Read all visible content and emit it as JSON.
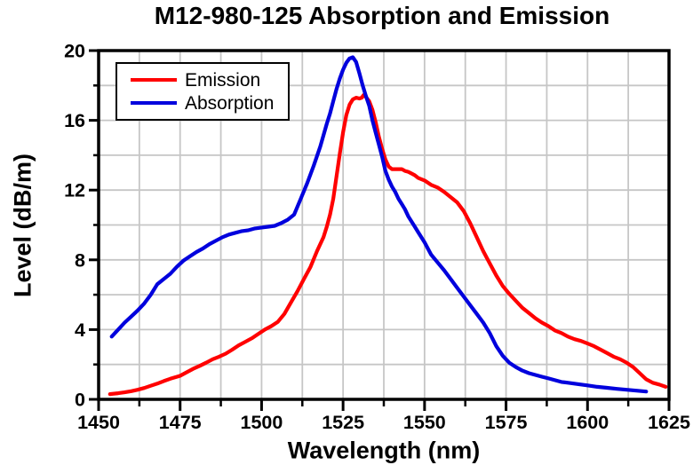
{
  "title": "M12-980-125 Absorption and Emission",
  "colors": {
    "emission": "#ff0000",
    "absorption": "#0000dd",
    "grid": "#c6c6c6",
    "frame": "#000000",
    "background": "#ffffff",
    "text": "#000000"
  },
  "legend": {
    "position": "top-left",
    "items": [
      {
        "label": "Emission",
        "color": "#ff0000"
      },
      {
        "label": "Absorption",
        "color": "#0000dd"
      }
    ]
  },
  "chart_data": {
    "type": "line",
    "title": "M12-980-125 Absorption and Emission",
    "xlabel": "Wavelength (nm)",
    "ylabel": "Level (dB/m)",
    "xlim": [
      1450,
      1625
    ],
    "ylim": [
      0,
      20
    ],
    "x_major_ticks": [
      1450,
      1475,
      1500,
      1525,
      1550,
      1575,
      1600,
      1625
    ],
    "x_minor_step": 12.5,
    "y_major_ticks": [
      0,
      4,
      8,
      12,
      16,
      20
    ],
    "y_minor_step": 2,
    "grid": true,
    "legend_position": "top-left",
    "series": [
      {
        "name": "Emission",
        "color": "#ff0000",
        "points": [
          [
            1453.5,
            0.3
          ],
          [
            1456,
            0.35
          ],
          [
            1458,
            0.4
          ],
          [
            1460,
            0.47
          ],
          [
            1462,
            0.55
          ],
          [
            1464,
            0.65
          ],
          [
            1466,
            0.78
          ],
          [
            1468,
            0.9
          ],
          [
            1470,
            1.05
          ],
          [
            1472,
            1.18
          ],
          [
            1475,
            1.35
          ],
          [
            1477,
            1.55
          ],
          [
            1479,
            1.75
          ],
          [
            1481,
            1.92
          ],
          [
            1483,
            2.1
          ],
          [
            1485,
            2.3
          ],
          [
            1487,
            2.45
          ],
          [
            1489,
            2.62
          ],
          [
            1491,
            2.85
          ],
          [
            1493,
            3.1
          ],
          [
            1495,
            3.3
          ],
          [
            1497,
            3.5
          ],
          [
            1499,
            3.75
          ],
          [
            1501,
            4.0
          ],
          [
            1503,
            4.2
          ],
          [
            1505,
            4.45
          ],
          [
            1507,
            4.9
          ],
          [
            1509,
            5.55
          ],
          [
            1511,
            6.2
          ],
          [
            1513,
            6.9
          ],
          [
            1515,
            7.6
          ],
          [
            1517,
            8.5
          ],
          [
            1519,
            9.3
          ],
          [
            1520,
            9.9
          ],
          [
            1521,
            10.6
          ],
          [
            1522,
            11.5
          ],
          [
            1523,
            12.8
          ],
          [
            1524,
            14.1
          ],
          [
            1525,
            15.3
          ],
          [
            1526,
            16.3
          ],
          [
            1527,
            16.9
          ],
          [
            1528,
            17.2
          ],
          [
            1529,
            17.3
          ],
          [
            1530,
            17.25
          ],
          [
            1530.7,
            17.3
          ],
          [
            1531.3,
            17.45
          ],
          [
            1532,
            17.35
          ],
          [
            1533,
            17.1
          ],
          [
            1534,
            16.6
          ],
          [
            1535,
            15.9
          ],
          [
            1536,
            15.05
          ],
          [
            1537,
            14.35
          ],
          [
            1538,
            13.75
          ],
          [
            1539,
            13.35
          ],
          [
            1540,
            13.2
          ],
          [
            1541,
            13.2
          ],
          [
            1542,
            13.2
          ],
          [
            1543,
            13.2
          ],
          [
            1544,
            13.1
          ],
          [
            1545,
            13.05
          ],
          [
            1546,
            12.95
          ],
          [
            1547,
            12.85
          ],
          [
            1548,
            12.7
          ],
          [
            1550,
            12.55
          ],
          [
            1552,
            12.3
          ],
          [
            1554,
            12.15
          ],
          [
            1556,
            11.9
          ],
          [
            1558,
            11.6
          ],
          [
            1560,
            11.3
          ],
          [
            1562,
            10.8
          ],
          [
            1564,
            10.1
          ],
          [
            1566,
            9.3
          ],
          [
            1568,
            8.5
          ],
          [
            1570,
            7.8
          ],
          [
            1572,
            7.1
          ],
          [
            1574,
            6.5
          ],
          [
            1576,
            6.05
          ],
          [
            1578,
            5.65
          ],
          [
            1580,
            5.25
          ],
          [
            1582,
            4.95
          ],
          [
            1584,
            4.65
          ],
          [
            1586,
            4.4
          ],
          [
            1588,
            4.2
          ],
          [
            1590,
            3.95
          ],
          [
            1592,
            3.8
          ],
          [
            1594,
            3.6
          ],
          [
            1596,
            3.45
          ],
          [
            1598,
            3.35
          ],
          [
            1600,
            3.2
          ],
          [
            1602,
            3.05
          ],
          [
            1604,
            2.85
          ],
          [
            1606,
            2.65
          ],
          [
            1608,
            2.45
          ],
          [
            1610,
            2.3
          ],
          [
            1612,
            2.1
          ],
          [
            1614,
            1.85
          ],
          [
            1616,
            1.5
          ],
          [
            1618,
            1.15
          ],
          [
            1620,
            0.95
          ],
          [
            1622,
            0.85
          ],
          [
            1624,
            0.72
          ]
        ]
      },
      {
        "name": "Absorption",
        "color": "#0000dd",
        "points": [
          [
            1454,
            3.6
          ],
          [
            1456,
            4.0
          ],
          [
            1458,
            4.4
          ],
          [
            1460,
            4.75
          ],
          [
            1462,
            5.1
          ],
          [
            1464,
            5.5
          ],
          [
            1466,
            6.0
          ],
          [
            1468,
            6.6
          ],
          [
            1470,
            6.9
          ],
          [
            1472,
            7.2
          ],
          [
            1474,
            7.6
          ],
          [
            1476,
            7.95
          ],
          [
            1478,
            8.2
          ],
          [
            1480,
            8.45
          ],
          [
            1482,
            8.65
          ],
          [
            1484,
            8.9
          ],
          [
            1486,
            9.1
          ],
          [
            1488,
            9.3
          ],
          [
            1490,
            9.45
          ],
          [
            1492,
            9.55
          ],
          [
            1494,
            9.65
          ],
          [
            1496,
            9.7
          ],
          [
            1498,
            9.8
          ],
          [
            1500,
            9.85
          ],
          [
            1502,
            9.9
          ],
          [
            1504,
            9.95
          ],
          [
            1506,
            10.1
          ],
          [
            1508,
            10.3
          ],
          [
            1510,
            10.6
          ],
          [
            1512,
            11.5
          ],
          [
            1514,
            12.4
          ],
          [
            1516,
            13.4
          ],
          [
            1518,
            14.5
          ],
          [
            1520,
            15.8
          ],
          [
            1521,
            16.4
          ],
          [
            1522,
            17.1
          ],
          [
            1523,
            17.8
          ],
          [
            1524,
            18.4
          ],
          [
            1525,
            18.9
          ],
          [
            1526,
            19.3
          ],
          [
            1527,
            19.55
          ],
          [
            1528,
            19.62
          ],
          [
            1529,
            19.35
          ],
          [
            1530,
            18.7
          ],
          [
            1531,
            18.0
          ],
          [
            1532,
            17.4
          ],
          [
            1533,
            16.85
          ],
          [
            1534,
            16.0
          ],
          [
            1535,
            15.3
          ],
          [
            1536,
            14.6
          ],
          [
            1537,
            13.9
          ],
          [
            1538,
            13.1
          ],
          [
            1539,
            12.6
          ],
          [
            1540,
            12.2
          ],
          [
            1541,
            11.9
          ],
          [
            1542,
            11.5
          ],
          [
            1543,
            11.2
          ],
          [
            1544,
            10.9
          ],
          [
            1545,
            10.5
          ],
          [
            1546,
            10.2
          ],
          [
            1547,
            9.9
          ],
          [
            1548,
            9.6
          ],
          [
            1550,
            9.0
          ],
          [
            1552,
            8.3
          ],
          [
            1554,
            7.85
          ],
          [
            1556,
            7.4
          ],
          [
            1558,
            6.9
          ],
          [
            1560,
            6.4
          ],
          [
            1562,
            5.9
          ],
          [
            1564,
            5.4
          ],
          [
            1566,
            4.9
          ],
          [
            1568,
            4.4
          ],
          [
            1570,
            3.8
          ],
          [
            1572,
            3.05
          ],
          [
            1574,
            2.5
          ],
          [
            1576,
            2.1
          ],
          [
            1578,
            1.85
          ],
          [
            1580,
            1.65
          ],
          [
            1582,
            1.5
          ],
          [
            1584,
            1.4
          ],
          [
            1586,
            1.3
          ],
          [
            1588,
            1.2
          ],
          [
            1590,
            1.1
          ],
          [
            1592,
            1.0
          ],
          [
            1594,
            0.95
          ],
          [
            1596,
            0.9
          ],
          [
            1598,
            0.85
          ],
          [
            1600,
            0.8
          ],
          [
            1603,
            0.72
          ],
          [
            1606,
            0.66
          ],
          [
            1609,
            0.6
          ],
          [
            1612,
            0.55
          ],
          [
            1615,
            0.5
          ],
          [
            1618,
            0.45
          ]
        ]
      }
    ]
  }
}
